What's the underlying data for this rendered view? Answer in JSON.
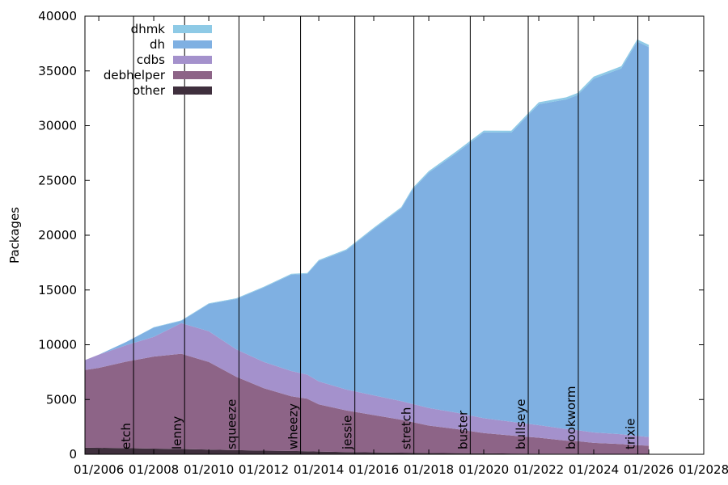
{
  "chart_data": {
    "type": "area",
    "title": "",
    "xlabel": "",
    "ylabel": "Packages",
    "stacked": true,
    "xlim": [
      "2005-07-01",
      "2028-01-01"
    ],
    "ylim": [
      0,
      40000
    ],
    "y_ticks": [
      0,
      5000,
      10000,
      15000,
      20000,
      25000,
      30000,
      35000,
      40000
    ],
    "x_ticks": [
      "2006-01-01",
      "2008-01-01",
      "2010-01-01",
      "2012-01-01",
      "2014-01-01",
      "2016-01-01",
      "2018-01-01",
      "2020-01-01",
      "2022-01-01",
      "2024-01-01",
      "2026-01-01",
      "2028-01-01"
    ],
    "x_tick_labels": [
      "01/2006",
      "01/2008",
      "01/2010",
      "01/2012",
      "01/2014",
      "01/2016",
      "01/2018",
      "01/2020",
      "01/2022",
      "01/2024",
      "01/2026",
      "01/2028"
    ],
    "grid": false,
    "legend_position": "top-left",
    "x": [
      "2005-07-01",
      "2006-01-01",
      "2007-01-01",
      "2008-01-01",
      "2009-01-01",
      "2010-01-01",
      "2011-01-01",
      "2012-01-01",
      "2013-01-01",
      "2013-08-01",
      "2014-01-01",
      "2015-01-01",
      "2016-01-01",
      "2017-01-01",
      "2017-06-01",
      "2018-01-01",
      "2019-01-01",
      "2020-01-01",
      "2021-01-01",
      "2022-01-01",
      "2023-01-01",
      "2023-06-01",
      "2024-01-01",
      "2025-01-01",
      "2025-08-01",
      "2026-01-01"
    ],
    "series": [
      {
        "name": "other",
        "color": "#3f2f3d",
        "values": [
          600,
          590,
          560,
          520,
          480,
          430,
          380,
          330,
          300,
          270,
          250,
          210,
          180,
          150,
          140,
          120,
          100,
          90,
          70,
          60,
          50,
          50,
          40,
          30,
          30,
          30
        ]
      },
      {
        "name": "debhelper",
        "color": "#8d6487",
        "values": [
          7100,
          7300,
          7900,
          8400,
          8700,
          8000,
          6700,
          5700,
          5000,
          4800,
          4300,
          3800,
          3400,
          3000,
          2800,
          2500,
          2200,
          1850,
          1650,
          1450,
          1200,
          1150,
          1000,
          900,
          800,
          750
        ]
      },
      {
        "name": "cdbs",
        "color": "#a491cc",
        "values": [
          900,
          1200,
          1500,
          1800,
          2800,
          2800,
          2500,
          2400,
          2300,
          2200,
          2100,
          1900,
          1800,
          1700,
          1650,
          1600,
          1500,
          1350,
          1250,
          1150,
          1050,
          1000,
          950,
          900,
          850,
          800
        ]
      },
      {
        "name": "dh",
        "color": "#7fb0e2",
        "values": [
          0,
          0,
          300,
          850,
          200,
          2500,
          4600,
          6800,
          8800,
          9200,
          11000,
          12700,
          15200,
          17600,
          19600,
          21500,
          23700,
          26100,
          26400,
          29300,
          30100,
          30600,
          32300,
          33400,
          36000,
          35600
        ]
      },
      {
        "name": "dhmk",
        "color": "#8ecae6",
        "values": [
          0,
          0,
          0,
          30,
          40,
          50,
          60,
          70,
          80,
          80,
          90,
          100,
          110,
          120,
          130,
          140,
          150,
          160,
          170,
          180,
          190,
          190,
          200,
          200,
          200,
          200
        ]
      }
    ],
    "releases": [
      {
        "name": "etch",
        "date": "2007-04-08"
      },
      {
        "name": "lenny",
        "date": "2009-02-14"
      },
      {
        "name": "squeeze",
        "date": "2011-02-06"
      },
      {
        "name": "wheezy",
        "date": "2013-05-04"
      },
      {
        "name": "jessie",
        "date": "2015-04-25"
      },
      {
        "name": "stretch",
        "date": "2017-06-17"
      },
      {
        "name": "buster",
        "date": "2019-07-06"
      },
      {
        "name": "bullseye",
        "date": "2021-08-14"
      },
      {
        "name": "bookworm",
        "date": "2023-06-10"
      },
      {
        "name": "trixie",
        "date": "2025-08-09"
      }
    ]
  }
}
